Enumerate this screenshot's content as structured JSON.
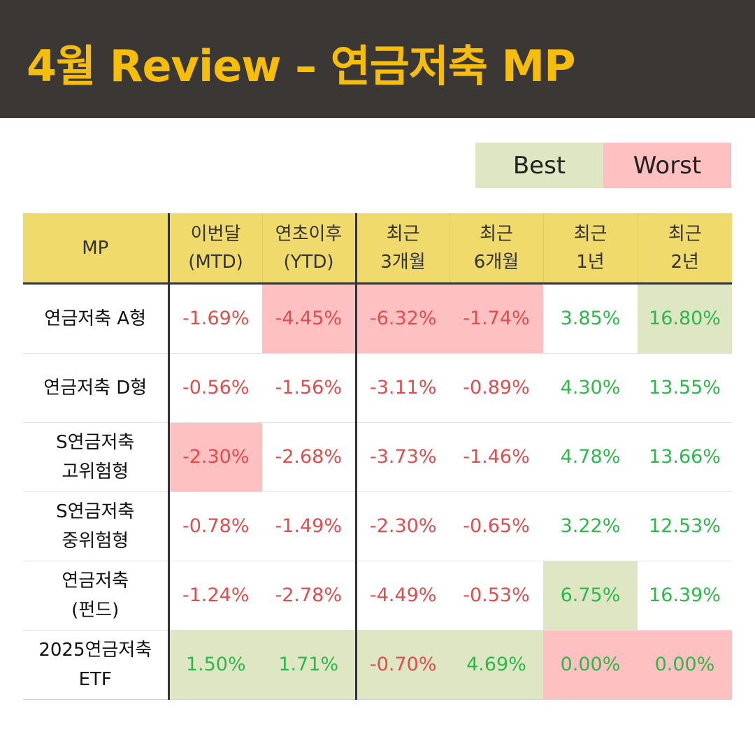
{
  "title": "4월 Review – 연금저축 MP",
  "legend": {
    "best": "Best",
    "worst": "Worst"
  },
  "colors": {
    "best_bg": "#dfe6c3",
    "worst_bg": "#fec0c0",
    "negative_text": "#e14d4d",
    "positive_text": "#2db84a",
    "header_bg": "#f0da6c",
    "title": "#f7bd0b"
  },
  "table": {
    "headers": [
      {
        "line1": "MP",
        "line2": ""
      },
      {
        "line1": "이번달",
        "line2": "(MTD)"
      },
      {
        "line1": "연초이후",
        "line2": "(YTD)"
      },
      {
        "line1": "최근",
        "line2": "3개월"
      },
      {
        "line1": "최근",
        "line2": "6개월"
      },
      {
        "line1": "최근",
        "line2": "1년"
      },
      {
        "line1": "최근",
        "line2": "2년"
      }
    ],
    "rows": [
      {
        "name1": "연금저축 A형",
        "name2": "",
        "values": [
          "-1.69%",
          "-4.45%",
          "-6.32%",
          "-1.74%",
          "3.85%",
          "16.80%"
        ],
        "highlight": [
          "",
          "worst",
          "worst",
          "worst",
          "",
          "best"
        ]
      },
      {
        "name1": "연금저축 D형",
        "name2": "",
        "values": [
          "-0.56%",
          "-1.56%",
          "-3.11%",
          "-0.89%",
          "4.30%",
          "13.55%"
        ],
        "highlight": [
          "",
          "",
          "",
          "",
          "",
          ""
        ]
      },
      {
        "name1": "S연금저축",
        "name2": "고위험형",
        "values": [
          "-2.30%",
          "-2.68%",
          "-3.73%",
          "-1.46%",
          "4.78%",
          "13.66%"
        ],
        "highlight": [
          "worst",
          "",
          "",
          "",
          "",
          ""
        ]
      },
      {
        "name1": "S연금저축",
        "name2": "중위험형",
        "values": [
          "-0.78%",
          "-1.49%",
          "-2.30%",
          "-0.65%",
          "3.22%",
          "12.53%"
        ],
        "highlight": [
          "",
          "",
          "",
          "",
          "",
          ""
        ]
      },
      {
        "name1": "연금저축",
        "name2": "(펀드)",
        "values": [
          "-1.24%",
          "-2.78%",
          "-4.49%",
          "-0.53%",
          "6.75%",
          "16.39%"
        ],
        "highlight": [
          "",
          "",
          "",
          "",
          "best",
          ""
        ]
      },
      {
        "name1": "2025연금저축",
        "name2": "ETF",
        "values": [
          "1.50%",
          "1.71%",
          "-0.70%",
          "4.69%",
          "0.00%",
          "0.00%"
        ],
        "highlight": [
          "best",
          "best",
          "best",
          "best",
          "worst",
          "worst"
        ]
      }
    ]
  }
}
